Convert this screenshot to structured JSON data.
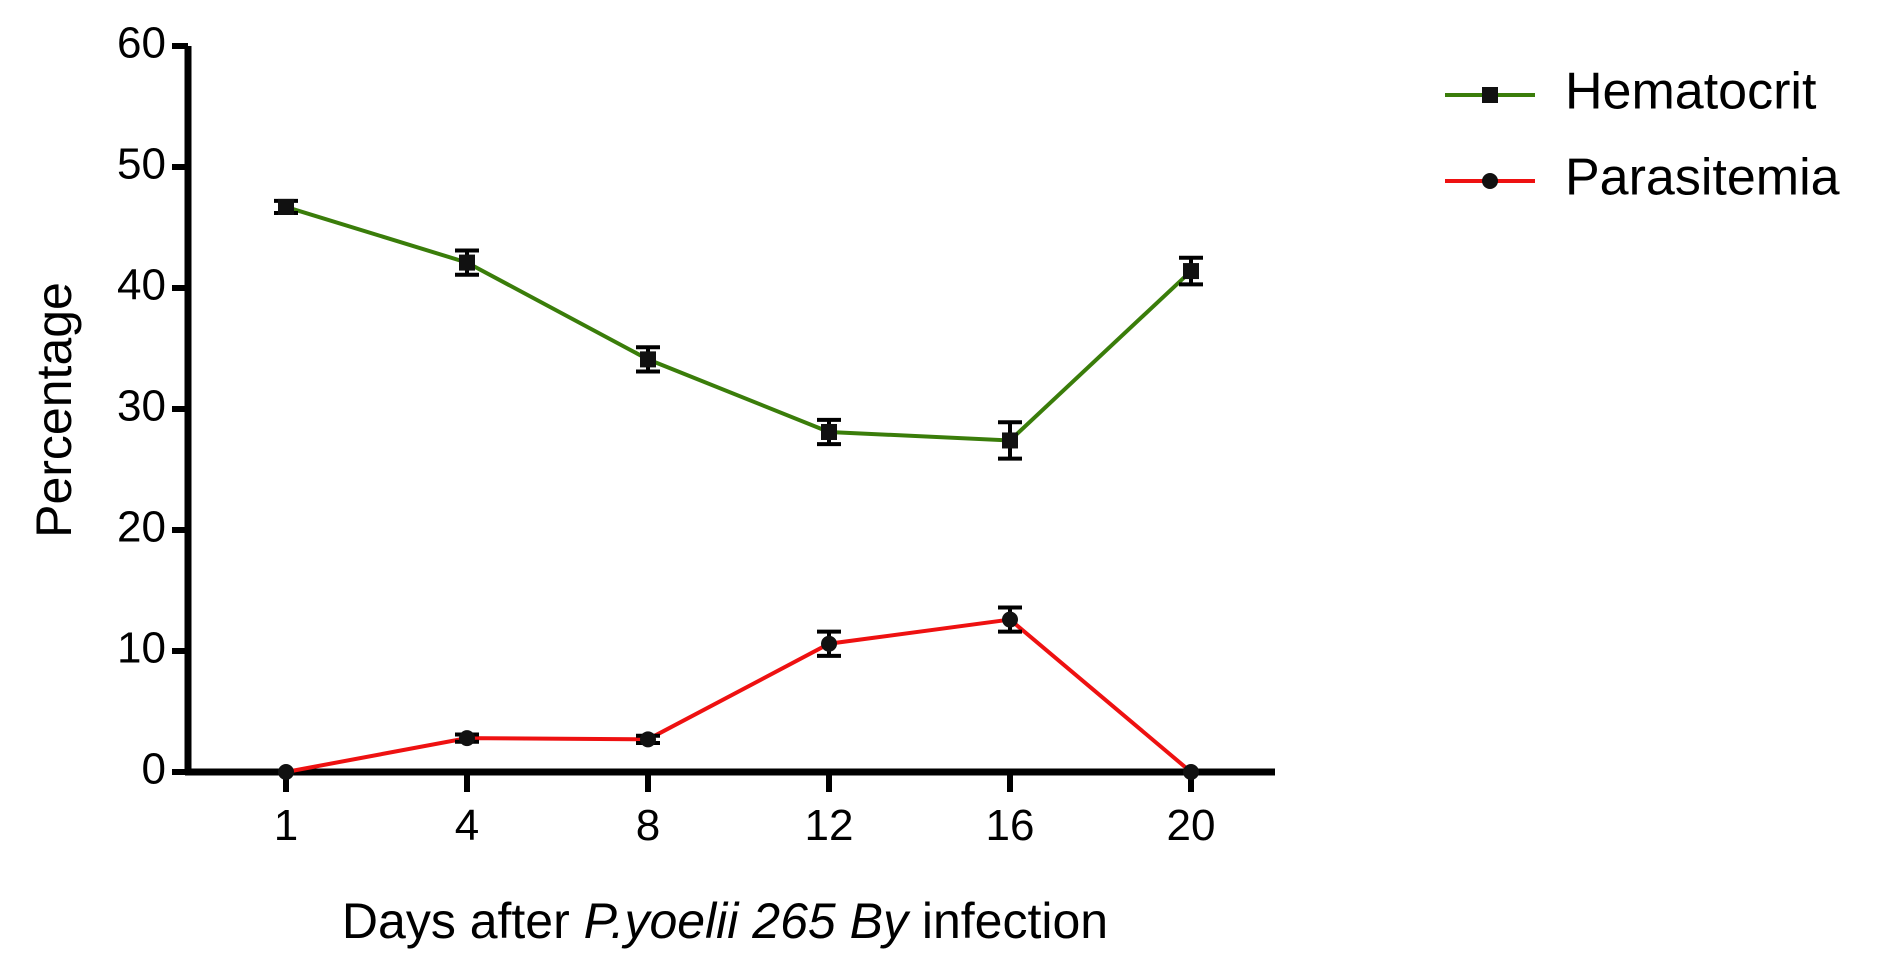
{
  "chart_data": {
    "type": "line",
    "categories": [
      "1",
      "4",
      "8",
      "12",
      "16",
      "20"
    ],
    "xlabel": {
      "prefix": "Days after ",
      "italic": "P.yoelii 265 By",
      "suffix": " infection"
    },
    "ylabel": "Percentage",
    "ylim": [
      0,
      60
    ],
    "yticks": [
      0,
      10,
      20,
      30,
      40,
      50,
      60
    ],
    "grid": false,
    "legend_position": "top-right",
    "series": [
      {
        "name": "Hematocrit",
        "color": "#3a7d0a",
        "marker": "square",
        "values": [
          46.7,
          42.1,
          34.1,
          28.1,
          27.4,
          41.4
        ],
        "errors": [
          0.5,
          1.0,
          1.0,
          1.0,
          1.5,
          1.1
        ]
      },
      {
        "name": "Parasitemia",
        "color": "#ee1111",
        "marker": "circle",
        "values": [
          0,
          2.8,
          2.7,
          10.6,
          12.6,
          0
        ],
        "errors": [
          0,
          0.3,
          0.3,
          1.0,
          1.0,
          0
        ]
      }
    ]
  }
}
